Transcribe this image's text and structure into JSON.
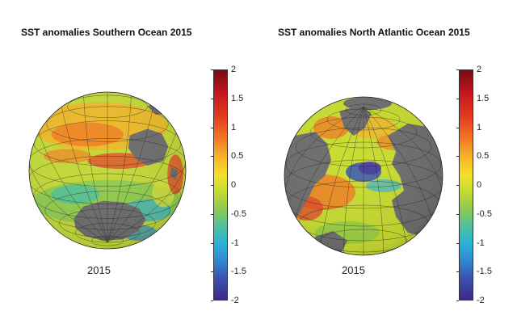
{
  "panels": [
    {
      "title": "SST anomalies Southern Ocean 2015",
      "year_label": "2015",
      "colorbar_ticks": [
        "2",
        "1.5",
        "1",
        "0.5",
        "0",
        "-0.5",
        "-1",
        "-1.5",
        "-2"
      ]
    },
    {
      "title": "SST anomalies North Atlantic Ocean 2015",
      "year_label": "2015",
      "colorbar_ticks": [
        "2",
        "1.5",
        "1",
        "0.5",
        "0",
        "-0.5",
        "-1",
        "-1.5",
        "-2"
      ]
    }
  ],
  "colorbar_range": [
    -2,
    2
  ],
  "colors": {
    "land": "#6f6f6f",
    "neutral_anomaly": "#c9dc32",
    "warm_anomaly": "#e53a1f",
    "cold_anomaly": "#3a55b5"
  }
}
